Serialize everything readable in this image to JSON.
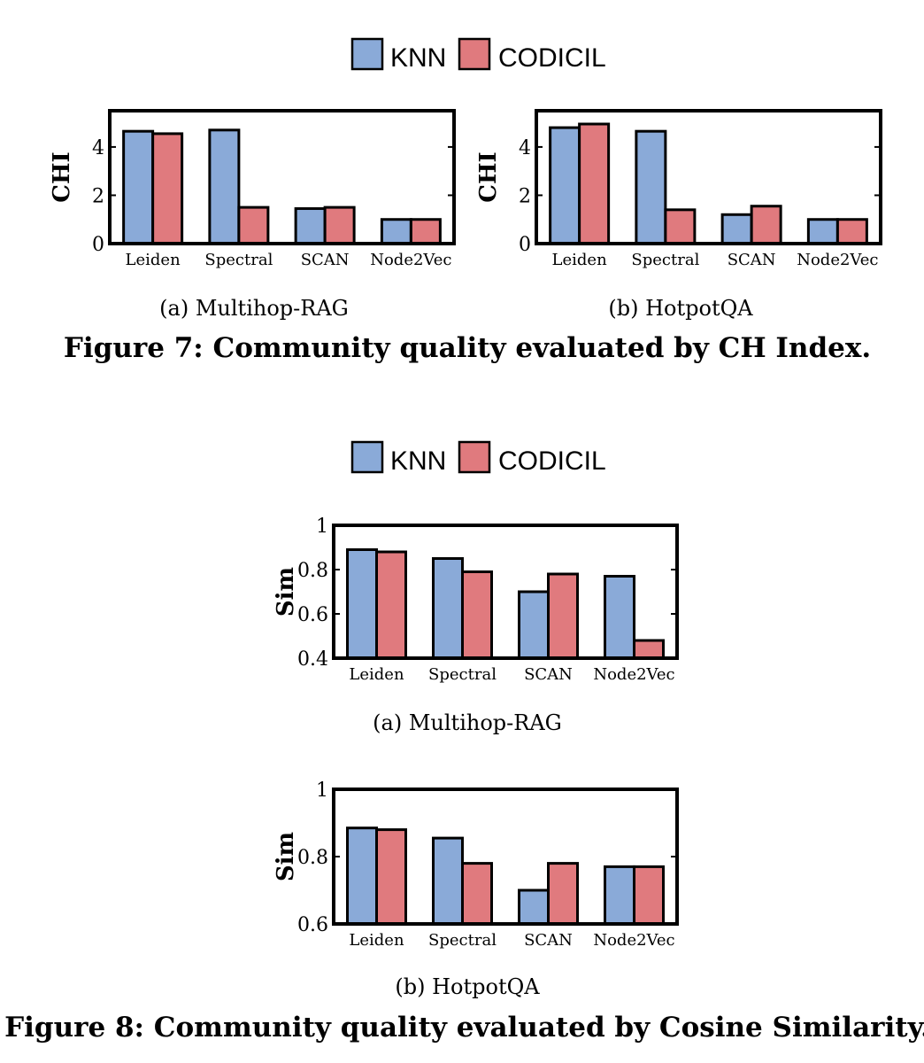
{
  "colors": {
    "knn": "#8aaad8",
    "codicil": "#e07a7e",
    "stroke": "#000000"
  },
  "legend": {
    "knn": "KNN",
    "codicil": "CODICIL"
  },
  "figure7": {
    "caption": "Figure 7: Community quality evaluated by CH Index."
  },
  "figure8": {
    "caption": "Figure 8: Community quality evaluated by Cosine Similarity."
  },
  "chart_data": [
    {
      "id": "f7a",
      "type": "bar",
      "subcaption": "(a)  Multihop-RAG",
      "ylabel": "CHI",
      "ylim": [
        0,
        5.5
      ],
      "yticks": [
        "0",
        "2",
        "4"
      ],
      "categories": [
        "Leiden",
        "Spectral",
        "SCAN",
        "Node2Vec"
      ],
      "series": [
        {
          "name": "KNN",
          "values": [
            4.65,
            4.7,
            1.45,
            1.0
          ]
        },
        {
          "name": "CODICIL",
          "values": [
            4.55,
            1.5,
            1.5,
            1.0
          ]
        }
      ]
    },
    {
      "id": "f7b",
      "type": "bar",
      "subcaption": "(b)  HotpotQA",
      "ylabel": "CHI",
      "ylim": [
        0,
        5.5
      ],
      "yticks": [
        "0",
        "2",
        "4"
      ],
      "categories": [
        "Leiden",
        "Spectral",
        "SCAN",
        "Node2Vec"
      ],
      "series": [
        {
          "name": "KNN",
          "values": [
            4.8,
            4.65,
            1.2,
            1.0
          ]
        },
        {
          "name": "CODICIL",
          "values": [
            4.95,
            1.4,
            1.55,
            1.0
          ]
        }
      ]
    },
    {
      "id": "f8a",
      "type": "bar",
      "subcaption": "(a)  Multihop-RAG",
      "ylabel": "Sim",
      "ylim": [
        0.4,
        1.0
      ],
      "yticks": [
        "0.4",
        "0.6",
        "0.8",
        "1"
      ],
      "categories": [
        "Leiden",
        "Spectral",
        "SCAN",
        "Node2Vec"
      ],
      "series": [
        {
          "name": "KNN",
          "values": [
            0.89,
            0.85,
            0.7,
            0.77
          ]
        },
        {
          "name": "CODICIL",
          "values": [
            0.88,
            0.79,
            0.78,
            0.48
          ]
        }
      ]
    },
    {
      "id": "f8b",
      "type": "bar",
      "subcaption": "(b)  HotpotQA",
      "ylabel": "Sim",
      "ylim": [
        0.6,
        1.0
      ],
      "yticks": [
        "0.6",
        "0.8",
        "1"
      ],
      "categories": [
        "Leiden",
        "Spectral",
        "SCAN",
        "Node2Vec"
      ],
      "series": [
        {
          "name": "KNN",
          "values": [
            0.885,
            0.855,
            0.7,
            0.77
          ]
        },
        {
          "name": "CODICIL",
          "values": [
            0.88,
            0.78,
            0.78,
            0.77
          ]
        }
      ]
    }
  ]
}
